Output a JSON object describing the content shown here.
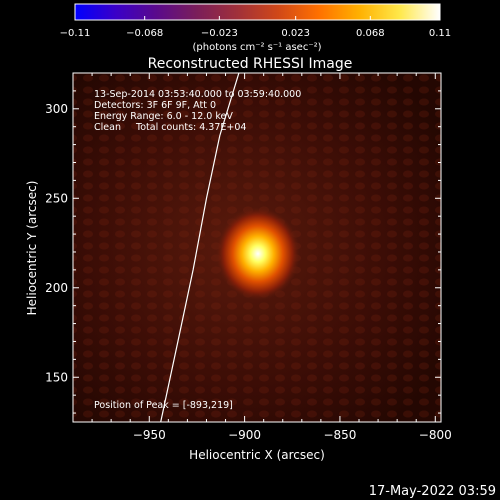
{
  "colors": {
    "background": "#000000",
    "foreground": "#ffffff",
    "limb_line": "#ffffff",
    "colormap": [
      "#0000ff",
      "#3a00c8",
      "#5a0a8c",
      "#7a1e5a",
      "#a0303a",
      "#d04818",
      "#ff7000",
      "#ffb000",
      "#ffe84a",
      "#ffffff"
    ]
  },
  "colorbar": {
    "ticks": [
      -0.11,
      -0.068,
      -0.023,
      0.023,
      0.068,
      0.11
    ],
    "tick_labels": [
      "−0.11",
      "−0.068",
      "−0.023",
      "0.023",
      "0.068",
      "0.11"
    ],
    "unit_label": "(photons cm⁻² s⁻¹ asec⁻²)",
    "range": [
      -0.11,
      0.11
    ]
  },
  "chart_data": {
    "type": "heatmap",
    "title": "Reconstructed RHESSI Image",
    "xlabel": "Heliocentric X (arcsec)",
    "ylabel": "Heliocentric Y (arcsec)",
    "xlim": [
      -990,
      -797
    ],
    "ylim": [
      125,
      320
    ],
    "x_ticks": [
      -950,
      -900,
      -850,
      -800
    ],
    "x_tick_labels": [
      "−950",
      "−900",
      "−850",
      "−800"
    ],
    "y_ticks": [
      150,
      200,
      250,
      300
    ],
    "y_tick_labels": [
      "150",
      "200",
      "250",
      "300"
    ],
    "peak": [
      -893,
      219
    ],
    "limb_points": [
      [
        -944,
        125
      ],
      [
        -935,
        170
      ],
      [
        -927,
        210
      ],
      [
        -920,
        250
      ],
      [
        -913,
        285
      ],
      [
        -903,
        320
      ]
    ],
    "grid": false
  },
  "annotations": {
    "time_range": "13-Sep-2014 03:53:40.000 to 03:59:40.000",
    "detectors": "Detectors: 3F 6F 9F, Att 0",
    "energy_range": "Energy Range: 6.0 - 12.0 keV",
    "clean_counts": "Clean     Total counts: 4.37E+04",
    "peak_position": "Position of Peak = [-893,219]"
  },
  "footer": {
    "timestamp": "17-May-2022 03:59"
  }
}
